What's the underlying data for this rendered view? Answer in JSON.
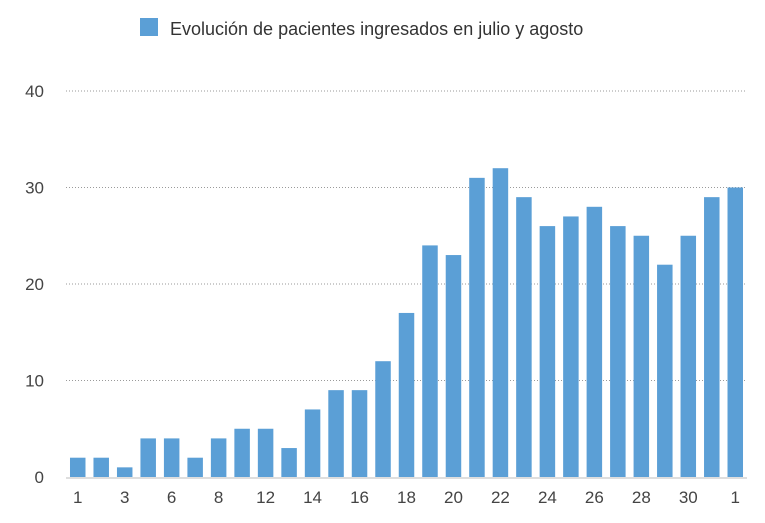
{
  "chart_data": {
    "type": "bar",
    "legend": {
      "label": "Evolución de pacientes ingresados en julio y agosto",
      "position": "top-center"
    },
    "series": [
      {
        "name": "Evolución de pacientes ingresados en julio y agosto",
        "color": "#5b9fd6",
        "values": [
          2,
          2,
          1,
          4,
          4,
          2,
          4,
          5,
          5,
          3,
          7,
          9,
          9,
          12,
          17,
          24,
          23,
          31,
          32,
          29,
          26,
          27,
          28,
          26,
          25,
          22,
          25,
          29,
          30
        ]
      }
    ],
    "x_tick_labels": [
      {
        "index": 0,
        "label": "1"
      },
      {
        "index": 2,
        "label": "3"
      },
      {
        "index": 4,
        "label": "6"
      },
      {
        "index": 6,
        "label": "8"
      },
      {
        "index": 8,
        "label": "12"
      },
      {
        "index": 10,
        "label": "14"
      },
      {
        "index": 12,
        "label": "16"
      },
      {
        "index": 14,
        "label": "18"
      },
      {
        "index": 16,
        "label": "20"
      },
      {
        "index": 18,
        "label": "22"
      },
      {
        "index": 20,
        "label": "24"
      },
      {
        "index": 22,
        "label": "26"
      },
      {
        "index": 24,
        "label": "28"
      },
      {
        "index": 26,
        "label": "30"
      },
      {
        "index": 28,
        "label": "1"
      }
    ],
    "y_ticks": [
      0,
      10,
      20,
      30,
      40
    ],
    "ylim": [
      0,
      40
    ],
    "grid": "horizontal dotted",
    "title": "",
    "xlabel": "",
    "ylabel": ""
  }
}
